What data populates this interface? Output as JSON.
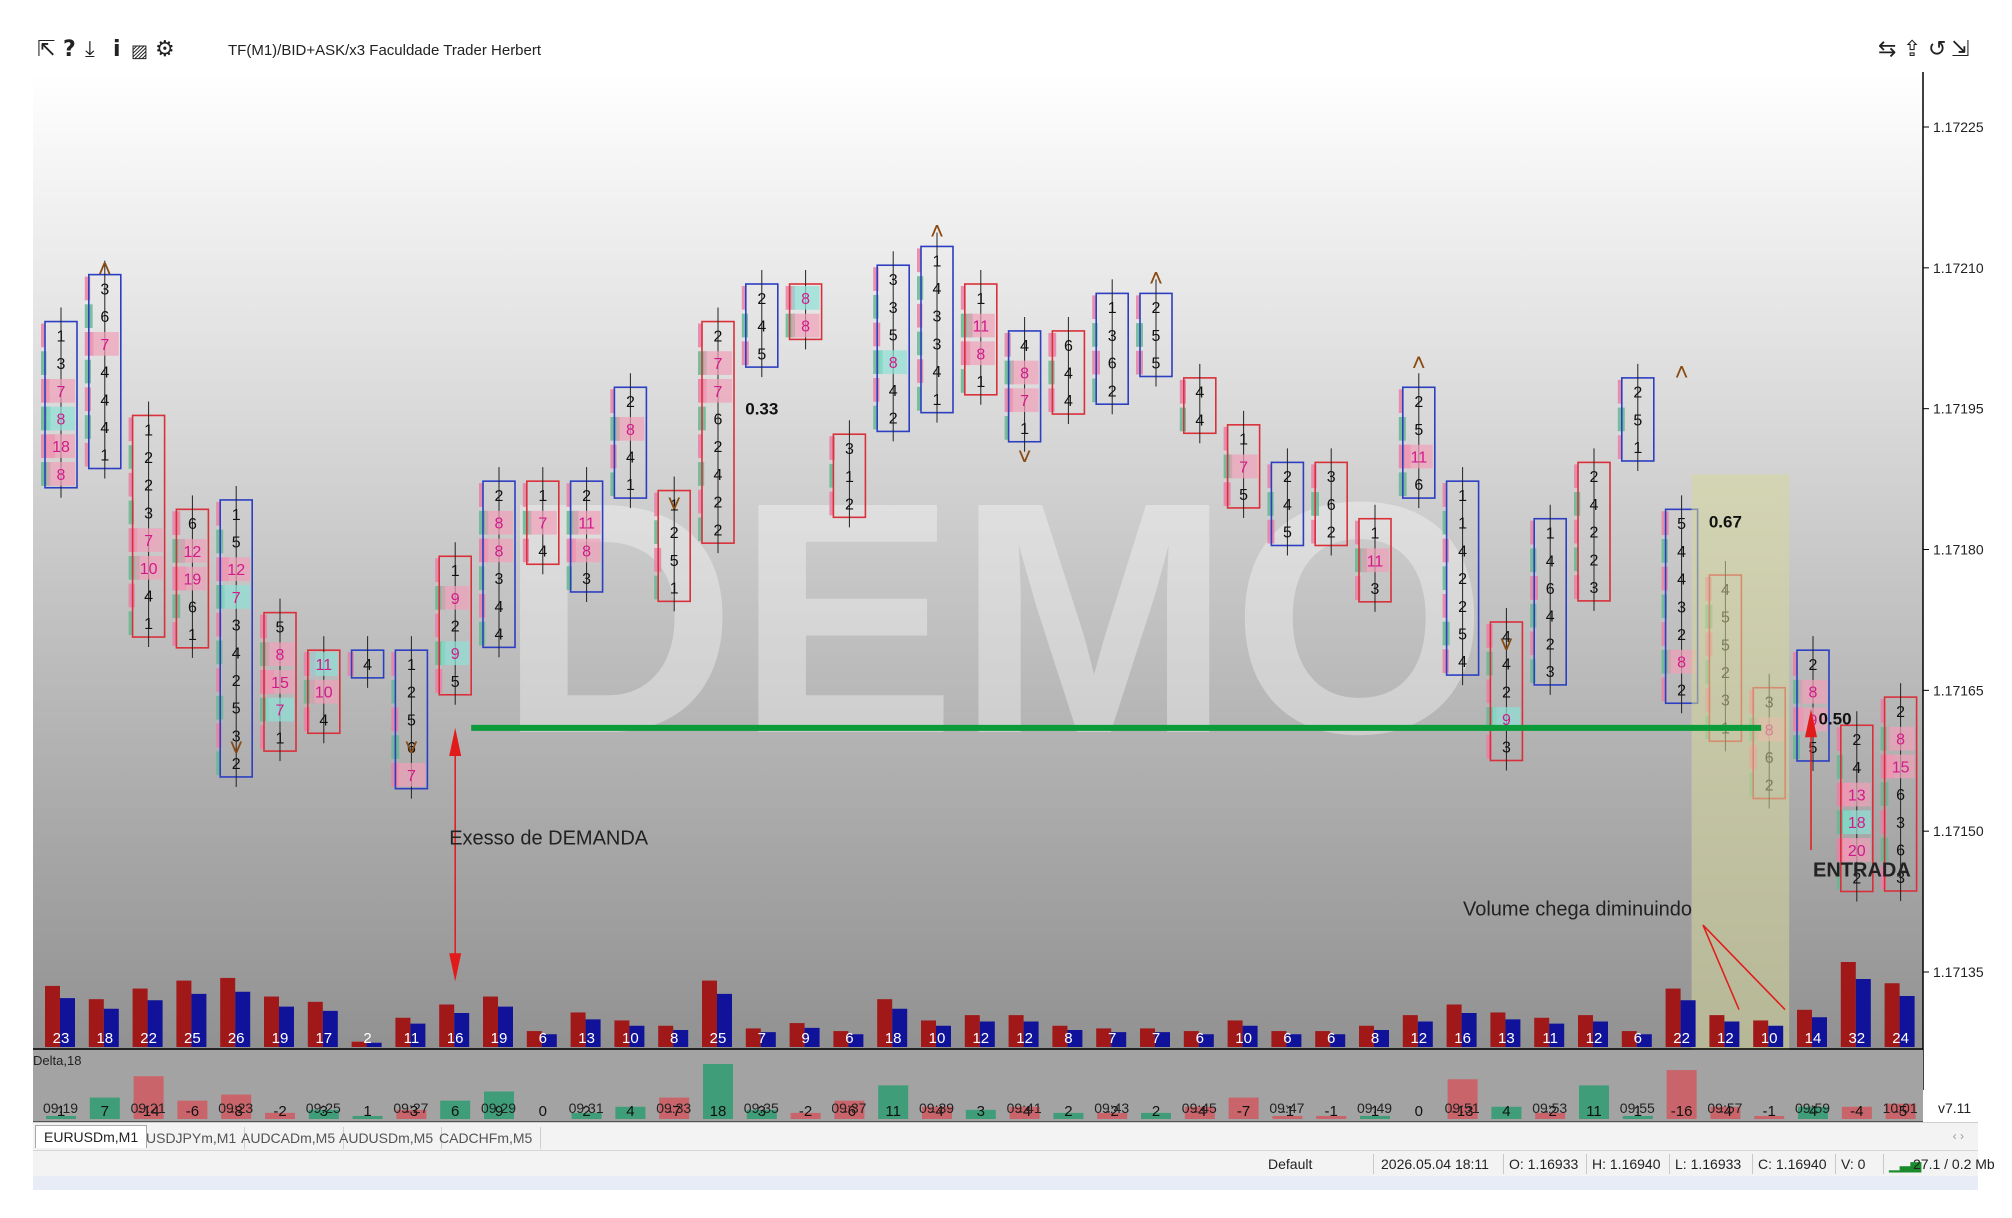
{
  "toolbar": {
    "icons": [
      "cursor-icon",
      "help-icon",
      "download-icon",
      "info-icon",
      "chart-icon",
      "gear-icon"
    ],
    "title": "TF(M1)/BID+ASK/x3  Faculdade Trader Herbert",
    "right_icons": [
      "swap-icon",
      "export-icon",
      "refresh-icon",
      "resize-icon"
    ]
  },
  "chart_data": {
    "type": "footprint",
    "symbol": "EURUSDm,M1",
    "watermark": "DEMO",
    "version": "v7.11",
    "price_axis": [
      {
        "price": 1.17225,
        "label": "1.17225"
      },
      {
        "price": 1.1721,
        "label": "1.17210"
      },
      {
        "price": 1.17195,
        "label": "1.17195"
      },
      {
        "price": 1.1718,
        "label": "1.17180"
      },
      {
        "price": 1.17165,
        "label": "1.17165"
      },
      {
        "price": 1.1715,
        "label": "1.17150"
      },
      {
        "price": 1.17135,
        "label": "1.17135"
      }
    ],
    "time_labels": [
      "09:19",
      "09:21",
      "09:23",
      "09:25",
      "09:27",
      "09:29",
      "09:31",
      "09:33",
      "09:35",
      "09:37",
      "09:39",
      "09:41",
      "09:43",
      "09:45",
      "09:47",
      "09:49",
      "09:51",
      "09:53",
      "09:55",
      "09:57",
      "09:59",
      "10:01"
    ],
    "delta_title": "Delta,18",
    "volumes": [
      23,
      18,
      22,
      25,
      26,
      19,
      17,
      2,
      11,
      16,
      19,
      6,
      13,
      10,
      8,
      25,
      7,
      9,
      6,
      18,
      10,
      12,
      12,
      8,
      7,
      7,
      6,
      10,
      6,
      6,
      8,
      12,
      16,
      13,
      11,
      12,
      6,
      22,
      12,
      10,
      14,
      32,
      24
    ],
    "deltas": [
      1,
      7,
      -14,
      -6,
      -8,
      -2,
      3,
      1,
      -3,
      6,
      9,
      0,
      2,
      4,
      -7,
      18,
      3,
      -2,
      -6,
      11,
      -4,
      3,
      -4,
      2,
      -2,
      2,
      -4,
      -7,
      -1,
      -1,
      1,
      0,
      -13,
      4,
      -2,
      11,
      1,
      -16,
      -4,
      -1,
      4,
      -4,
      -5
    ],
    "candles": [
      {
        "cells": [
          "1",
          "3",
          "7",
          "8",
          "18",
          "8"
        ]
      },
      {
        "cells": [
          "3",
          "6",
          "7",
          "4",
          "4",
          "4",
          "1"
        ]
      },
      {
        "cells": [
          "1",
          "2",
          "2",
          "3",
          "7",
          "10",
          "4",
          "1"
        ]
      },
      {
        "cells": [
          "6",
          "12",
          "19",
          "6",
          "1"
        ]
      },
      {
        "cells": [
          "1",
          "5",
          "12",
          "7",
          "3",
          "4",
          "2",
          "5",
          "3",
          "2"
        ]
      },
      {
        "cells": [
          "5",
          "8",
          "15",
          "7",
          "1"
        ]
      },
      {
        "cells": [
          "11",
          "10",
          "4"
        ]
      },
      {
        "cells": [
          "4"
        ]
      },
      {
        "cells": [
          "1",
          "2",
          "5",
          "6",
          "7"
        ]
      },
      {
        "cells": [
          "1",
          "9",
          "2",
          "9",
          "5"
        ]
      },
      {
        "cells": [
          "2",
          "8",
          "8",
          "3",
          "4",
          "4"
        ]
      },
      {
        "cells": [
          "1",
          "7",
          "4"
        ]
      },
      {
        "cells": [
          "2",
          "11",
          "8",
          "3"
        ]
      },
      {
        "cells": [
          "2",
          "8",
          "4",
          "1"
        ]
      },
      {
        "cells": [
          "1",
          "2",
          "5",
          "1"
        ]
      },
      {
        "cells": [
          "2",
          "7",
          "7",
          "6",
          "2",
          "4",
          "2",
          "2"
        ]
      },
      {
        "cells": [
          "2",
          "4",
          "5"
        ]
      },
      {
        "cells": [
          "8",
          "8"
        ]
      },
      {
        "cells": [
          "3",
          "1",
          "2"
        ]
      },
      {
        "cells": [
          "3",
          "3",
          "5",
          "8",
          "4",
          "2"
        ]
      },
      {
        "cells": [
          "1",
          "4",
          "3",
          "3",
          "4",
          "1"
        ]
      },
      {
        "cells": [
          "1",
          "11",
          "8",
          "1"
        ]
      },
      {
        "cells": [
          "4",
          "8",
          "7",
          "1"
        ]
      },
      {
        "cells": [
          "6",
          "4",
          "4"
        ]
      },
      {
        "cells": [
          "1",
          "3",
          "6",
          "2"
        ]
      },
      {
        "cells": [
          "2",
          "5",
          "5"
        ]
      },
      {
        "cells": [
          "4",
          "4"
        ]
      },
      {
        "cells": [
          "1",
          "7",
          "5"
        ]
      },
      {
        "cells": [
          "2",
          "4",
          "5"
        ]
      },
      {
        "cells": [
          "3",
          "6",
          "2"
        ]
      },
      {
        "cells": [
          "1",
          "11",
          "3"
        ]
      },
      {
        "cells": [
          "2",
          "5",
          "11",
          "6"
        ]
      },
      {
        "cells": [
          "1",
          "1",
          "4",
          "2",
          "2",
          "5",
          "4"
        ]
      },
      {
        "cells": [
          "4",
          "4",
          "2",
          "9",
          "3"
        ]
      },
      {
        "cells": [
          "1",
          "4",
          "6",
          "4",
          "2",
          "3"
        ]
      },
      {
        "cells": [
          "2",
          "4",
          "2",
          "2",
          "3"
        ]
      },
      {
        "cells": [
          "2",
          "5",
          "1"
        ]
      },
      {
        "cells": [
          "5",
          "4",
          "4",
          "3",
          "2",
          "8",
          "2"
        ]
      },
      {
        "cells": [
          "4",
          "5",
          "5",
          "2",
          "3",
          "1"
        ]
      },
      {
        "cells": [
          "3",
          "8",
          "6",
          "2"
        ]
      },
      {
        "cells": [
          "2",
          "8",
          "9",
          "5"
        ]
      },
      {
        "cells": [
          "2",
          "4",
          "13",
          "18",
          "20",
          "2"
        ]
      },
      {
        "cells": [
          "2",
          "8",
          "15",
          "6",
          "3",
          "6",
          "3"
        ]
      }
    ],
    "labels": {
      "ratio1": "0.33",
      "ratio2": "0.67",
      "ratio3": "0.50"
    },
    "annotations": {
      "excess": "Exesso de DEMANDA",
      "volume": "Volume chega diminuindo",
      "entry": "ENTRADA"
    },
    "colors": {
      "bid": "#a01818",
      "ask": "#10129a",
      "delta_pos": "#3f9d7a",
      "delta_neg": "#c8646a",
      "support_line": "#0b9b3a",
      "annotation": "#e21a1a",
      "highlight": "#d6d79b"
    }
  },
  "tabs": [
    {
      "label": "EURUSDm,M1",
      "active": true
    },
    {
      "label": "USDJPYm,M1",
      "active": false
    },
    {
      "label": "AUDCADm,M5",
      "active": false
    },
    {
      "label": "AUDUSDm,M5",
      "active": false
    },
    {
      "label": "CADCHFm,M5",
      "active": false
    }
  ],
  "status": {
    "profile": "Default",
    "datetime": "2026.05.04 18:11",
    "open": "O: 1.16933",
    "high": "H: 1.16940",
    "low": "L: 1.16933",
    "close": "C: 1.16940",
    "volume": "V: 0",
    "traffic": "27.1 / 0.2 Mb"
  }
}
